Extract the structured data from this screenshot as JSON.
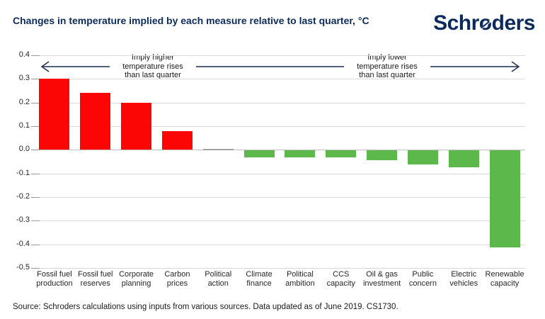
{
  "header": {
    "brand_part1": "Schr",
    "brand_o": "o",
    "brand_part2": "ders"
  },
  "chart_data": {
    "type": "bar",
    "title": "Changes in temperature implied by each measure relative to last quarter, °C",
    "categories": [
      "Fossil fuel\nproduction",
      "Fossil fuel\nreserves",
      "Corporate\nplanning",
      "Carbon\nprices",
      "Political\naction",
      "Climate\nfinance",
      "Political\nambition",
      "CCS\ncapacity",
      "Oil & gas\ninvestment",
      "Public\nconcern",
      "Electric\nvehicles",
      "Renewable\ncapacity"
    ],
    "values": [
      0.3,
      0.24,
      0.2,
      0.08,
      0.0,
      -0.03,
      -0.03,
      -0.03,
      -0.04,
      -0.06,
      -0.07,
      -0.41
    ],
    "xlabel": "",
    "ylabel": "",
    "ylim": [
      -0.5,
      0.4
    ],
    "yticks": [
      "0.4",
      "0.3",
      "0.2",
      "0.1",
      "0.0",
      "-0.1",
      "-0.2",
      "-0.3",
      "-0.4",
      "-0.5"
    ],
    "grid": true,
    "legend": false,
    "colors": {
      "positive": "#fb0505",
      "negative": "#5cb84b",
      "zero_bar": "#a0a0a0",
      "gridline": "#d9d9d9",
      "zero_line": "#bfbfbf",
      "arrow": "#1d2f54",
      "navy": "#0c2b5c"
    },
    "annotations": [
      {
        "text": "Imply higher\ntemperature rises\nthan last quarter",
        "direction": "left"
      },
      {
        "text": "Imply lower\ntemperature rises\nthan last quarter",
        "direction": "right"
      }
    ]
  },
  "footer": {
    "source": "Source: Schroders calculations using inputs from various sources. Data updated as of June 2019. CS1730."
  }
}
